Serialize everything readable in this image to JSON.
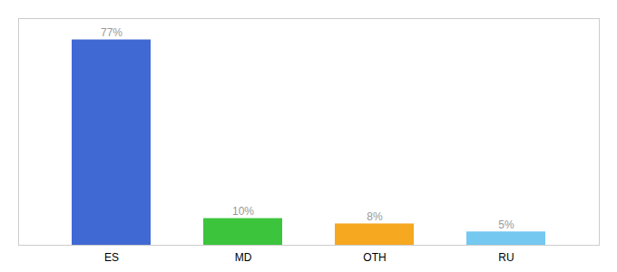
{
  "chart_data": {
    "type": "bar",
    "categories": [
      "ES",
      "MD",
      "OTH",
      "RU"
    ],
    "values": [
      77,
      10,
      8,
      5
    ],
    "value_labels": [
      "77%",
      "10%",
      "8%",
      "5%"
    ],
    "colors": [
      "#4169d4",
      "#3dc43d",
      "#f5a820",
      "#75c8f0"
    ],
    "ylim": [
      0,
      85
    ],
    "data_labels": true,
    "tick_labels": "x",
    "grid": false
  }
}
